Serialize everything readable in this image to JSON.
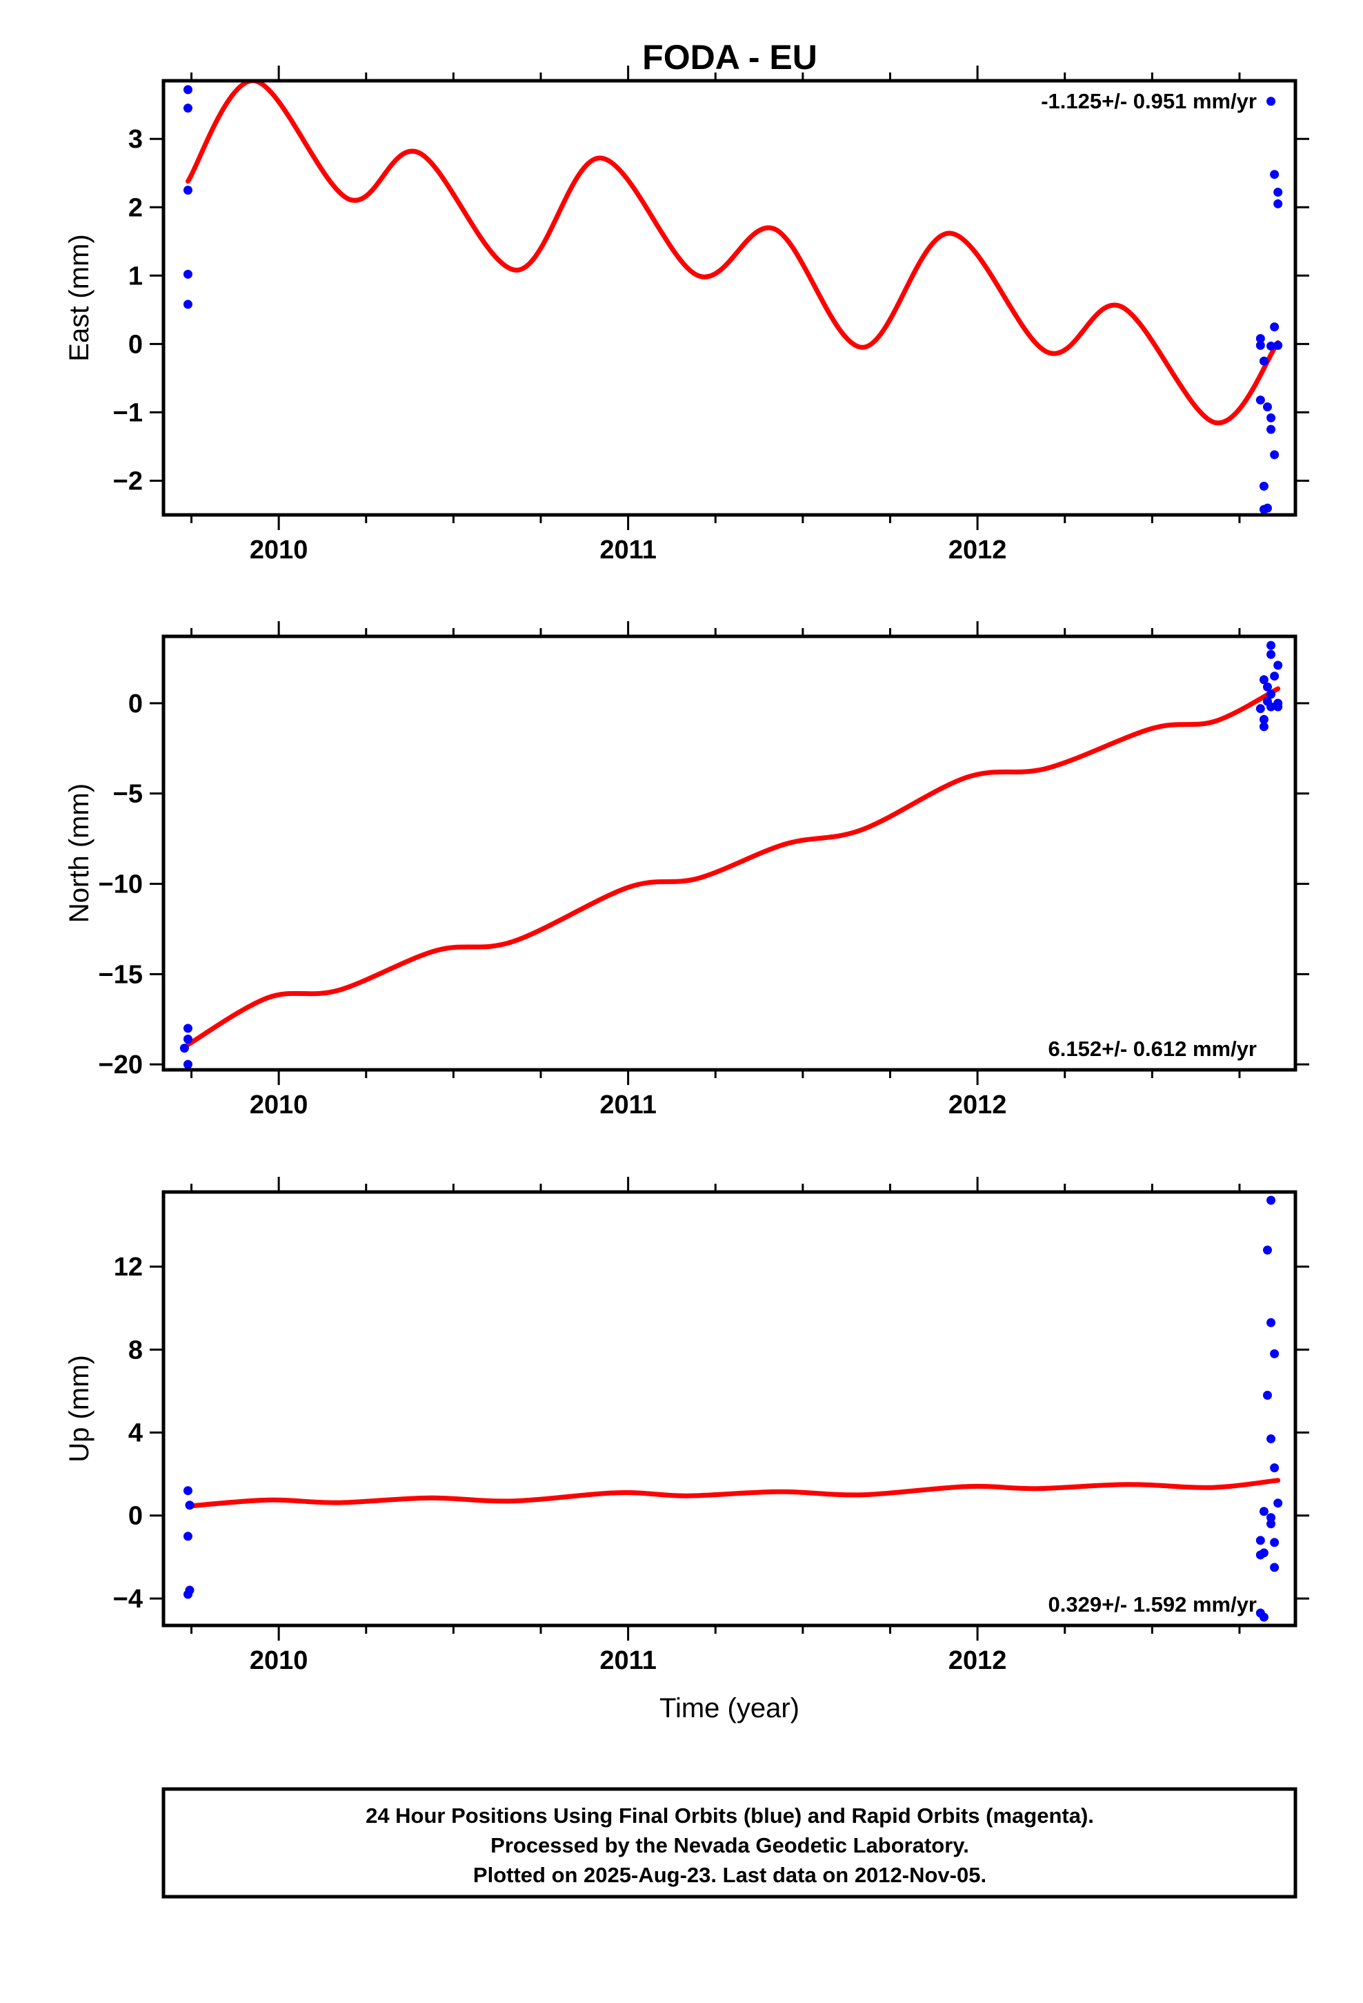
{
  "title": "FODA - EU",
  "colors": {
    "data_points": "#0000ff",
    "model_fit": "#ff0000",
    "frame": "#000000"
  },
  "chart_data": [
    {
      "type": "scatter",
      "ylabel": "East (mm)",
      "xlabel": "",
      "xlim": [
        2009.67,
        2012.91
      ],
      "ylim": [
        -2.5,
        3.85
      ],
      "xticks": [
        2010,
        2011,
        2012
      ],
      "xtick_labels": [
        "2010",
        "2011",
        "2012"
      ],
      "yticks": [
        -2,
        -1,
        0,
        1,
        2,
        3
      ],
      "ytick_labels": [
        "−2",
        "−1",
        "0",
        "1",
        "2",
        "3"
      ],
      "rate_text": "-1.125+/- 0.951 mm/yr",
      "rate_position": "top-right",
      "series": [
        {
          "points": [
            [
              2009.74,
              3.72
            ],
            [
              2009.74,
              3.45
            ],
            [
              2009.74,
              2.25
            ],
            [
              2009.74,
              1.02
            ],
            [
              2009.74,
              0.58
            ],
            [
              2012.81,
              0.08
            ],
            [
              2012.81,
              -0.02
            ],
            [
              2012.82,
              -0.25
            ],
            [
              2012.81,
              -0.82
            ],
            [
              2012.83,
              -0.92
            ],
            [
              2012.84,
              -1.08
            ],
            [
              2012.84,
              -1.25
            ],
            [
              2012.82,
              -2.08
            ],
            [
              2012.82,
              -2.42
            ],
            [
              2012.83,
              -2.4
            ],
            [
              2012.84,
              3.55
            ],
            [
              2012.85,
              2.48
            ],
            [
              2012.86,
              2.22
            ],
            [
              2012.86,
              2.05
            ],
            [
              2012.85,
              0.25
            ],
            [
              2012.84,
              -0.03
            ],
            [
              2012.86,
              -0.02
            ],
            [
              2012.85,
              -1.62
            ]
          ]
        },
        {
          "model": [
            [
              2009.74,
              2.38
            ],
            [
              2009.93,
              3.85
            ],
            [
              2010.2,
              2.12
            ],
            [
              2010.4,
              2.8
            ],
            [
              2010.68,
              1.08
            ],
            [
              2010.92,
              2.72
            ],
            [
              2011.2,
              1.0
            ],
            [
              2011.42,
              1.68
            ],
            [
              2011.67,
              -0.05
            ],
            [
              2011.92,
              1.62
            ],
            [
              2012.2,
              -0.12
            ],
            [
              2012.41,
              0.55
            ],
            [
              2012.68,
              -1.15
            ],
            [
              2012.86,
              0.02
            ]
          ]
        }
      ]
    },
    {
      "type": "scatter",
      "ylabel": "North (mm)",
      "xlabel": "",
      "xlim": [
        2009.67,
        2012.91
      ],
      "ylim": [
        -20.3,
        3.7
      ],
      "xticks": [
        2010,
        2011,
        2012
      ],
      "xtick_labels": [
        "2010",
        "2011",
        "2012"
      ],
      "yticks": [
        -20,
        -15,
        -10,
        -5,
        0
      ],
      "ytick_labels": [
        "−20",
        "−15",
        "−10",
        "−5",
        "0"
      ],
      "rate_text": "6.152+/- 0.612 mm/yr",
      "rate_position": "bottom-right",
      "series": [
        {
          "points": [
            [
              2009.74,
              -18.0
            ],
            [
              2009.74,
              -18.6
            ],
            [
              2009.73,
              -19.1
            ],
            [
              2009.74,
              -20.0
            ],
            [
              2012.84,
              3.2
            ],
            [
              2012.84,
              2.7
            ],
            [
              2012.86,
              2.1
            ],
            [
              2012.85,
              1.5
            ],
            [
              2012.82,
              1.3
            ],
            [
              2012.83,
              0.9
            ],
            [
              2012.84,
              0.5
            ],
            [
              2012.83,
              0.1
            ],
            [
              2012.86,
              0.0
            ],
            [
              2012.84,
              -0.2
            ],
            [
              2012.81,
              -0.3
            ],
            [
              2012.82,
              -0.9
            ],
            [
              2012.82,
              -1.3
            ],
            [
              2012.86,
              -0.2
            ]
          ]
        },
        {
          "model": [
            [
              2009.74,
              -18.9
            ],
            [
              2009.97,
              -16.3
            ],
            [
              2010.17,
              -15.9
            ],
            [
              2010.45,
              -13.7
            ],
            [
              2010.67,
              -13.2
            ],
            [
              2011.0,
              -10.2
            ],
            [
              2011.2,
              -9.7
            ],
            [
              2011.45,
              -7.8
            ],
            [
              2011.67,
              -7.0
            ],
            [
              2011.97,
              -4.1
            ],
            [
              2012.2,
              -3.6
            ],
            [
              2012.5,
              -1.4
            ],
            [
              2012.68,
              -1.0
            ],
            [
              2012.86,
              0.8
            ]
          ]
        }
      ]
    },
    {
      "type": "scatter",
      "ylabel": "Up (mm)",
      "xlabel": "Time (year)",
      "xlim": [
        2009.67,
        2012.91
      ],
      "ylim": [
        -5.3,
        15.6
      ],
      "xticks": [
        2010,
        2011,
        2012
      ],
      "xtick_labels": [
        "2010",
        "2011",
        "2012"
      ],
      "yticks": [
        -4,
        0,
        4,
        8,
        12
      ],
      "ytick_labels": [
        "−4",
        "0",
        "4",
        "8",
        "12"
      ],
      "rate_text": "0.329+/- 1.592 mm/yr",
      "rate_position": "bottom-right",
      "series": [
        {
          "points": [
            [
              2009.74,
              1.2
            ],
            [
              2009.745,
              0.5
            ],
            [
              2009.74,
              -1.0
            ],
            [
              2009.745,
              -3.6
            ],
            [
              2009.74,
              -3.8
            ],
            [
              2012.84,
              15.2
            ],
            [
              2012.83,
              12.8
            ],
            [
              2012.84,
              9.3
            ],
            [
              2012.85,
              7.8
            ],
            [
              2012.83,
              5.8
            ],
            [
              2012.84,
              3.7
            ],
            [
              2012.85,
              2.3
            ],
            [
              2012.86,
              0.6
            ],
            [
              2012.82,
              0.2
            ],
            [
              2012.84,
              -0.1
            ],
            [
              2012.84,
              -0.4
            ],
            [
              2012.81,
              -1.2
            ],
            [
              2012.85,
              -1.3
            ],
            [
              2012.82,
              -1.8
            ],
            [
              2012.81,
              -1.9
            ],
            [
              2012.85,
              -2.5
            ],
            [
              2012.81,
              -4.7
            ],
            [
              2012.82,
              -4.9
            ]
          ]
        },
        {
          "model": [
            [
              2009.74,
              0.45
            ],
            [
              2009.97,
              0.75
            ],
            [
              2010.17,
              0.62
            ],
            [
              2010.43,
              0.85
            ],
            [
              2010.67,
              0.7
            ],
            [
              2010.97,
              1.1
            ],
            [
              2011.17,
              0.95
            ],
            [
              2011.43,
              1.15
            ],
            [
              2011.67,
              1.0
            ],
            [
              2011.97,
              1.4
            ],
            [
              2012.17,
              1.3
            ],
            [
              2012.43,
              1.5
            ],
            [
              2012.67,
              1.35
            ],
            [
              2012.86,
              1.7
            ]
          ]
        }
      ]
    }
  ],
  "footer": {
    "line1": "24 Hour Positions Using Final Orbits (blue) and Rapid Orbits (magenta).",
    "line2": "Processed by the Nevada Geodetic Laboratory.",
    "line3": "Plotted on 2025-Aug-23. Last data on 2012-Nov-05."
  }
}
